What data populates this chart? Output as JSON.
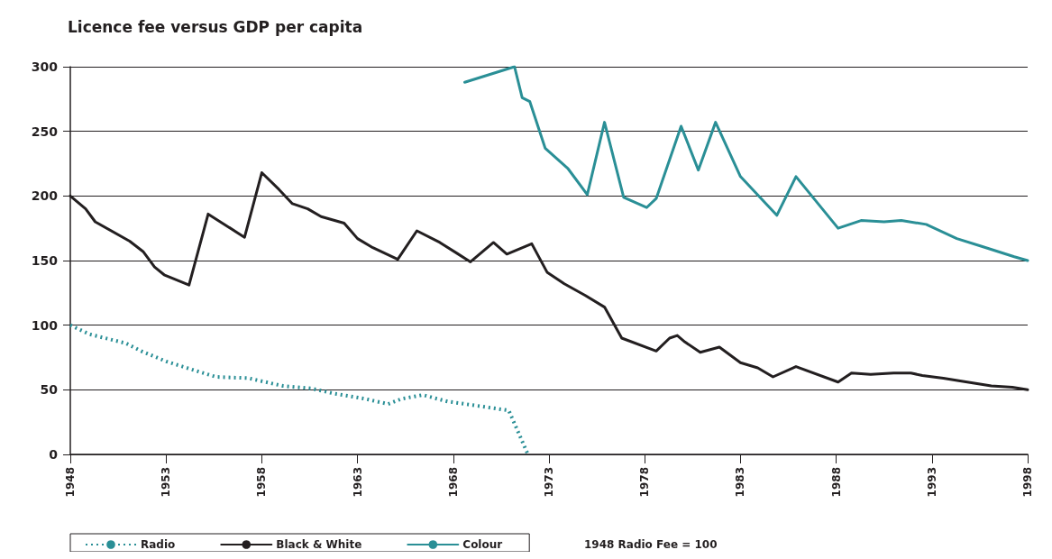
{
  "chart_data": {
    "type": "line",
    "title": "Licence fee versus GDP per capita",
    "annotations": [
      "1948 Radio Fee = 100"
    ],
    "xlim": [
      1948,
      1998
    ],
    "xticks": [
      1948,
      1953,
      1958,
      1963,
      1968,
      1973,
      1978,
      1983,
      1988,
      1993,
      1998
    ],
    "ylim": [
      0,
      300
    ],
    "yticks": [
      0,
      50,
      100,
      150,
      200,
      250,
      300
    ],
    "grid": "y",
    "legend": "bottom",
    "marker": "none",
    "series": [
      {
        "name": "Radio",
        "color": "#2a8f96",
        "line_style": "dotted",
        "x": [
          1948,
          1949,
          1950.9,
          1951.7,
          1953,
          1954.5,
          1955.6,
          1957.3,
          1959.1,
          1960.6,
          1961.8,
          1963.4,
          1964.6,
          1965.3,
          1966.4,
          1967.7,
          1969.1,
          1970.9,
          1971.9
        ],
        "values": [
          100,
          93,
          86,
          80,
          72,
          65,
          60,
          59,
          53,
          51,
          47,
          43,
          39,
          43,
          46,
          41,
          38,
          34,
          0
        ]
      },
      {
        "name": "Black & White",
        "color": "#231f20",
        "line_style": "solid",
        "x": [
          1948,
          1948.8,
          1949.3,
          1951.1,
          1951.8,
          1952.4,
          1952.9,
          1954.2,
          1955.2,
          1957.1,
          1958,
          1958.9,
          1959.6,
          1960.4,
          1961.1,
          1962.3,
          1963,
          1963.8,
          1965.1,
          1966.1,
          1967.3,
          1968.9,
          1970.1,
          1970.8,
          1972.1,
          1972.9,
          1973.8,
          1974.9,
          1975.9,
          1976.8,
          1978.6,
          1979.3,
          1979.7,
          1980.1,
          1980.9,
          1981.9,
          1983,
          1983.9,
          1984.7,
          1985.9,
          1988.1,
          1988.8,
          1989.8,
          1991,
          1991.9,
          1992.5,
          1993.6,
          1994.4,
          1996.1,
          1997.2,
          1998
        ],
        "values": [
          200,
          190,
          180,
          165,
          157,
          145,
          139,
          131,
          186,
          168,
          218,
          205,
          194,
          190,
          184,
          179,
          167,
          160,
          151,
          173,
          164,
          149,
          164,
          155,
          163,
          141,
          132,
          123,
          114,
          90,
          80,
          90,
          92,
          87,
          79,
          83,
          71,
          67,
          60,
          68,
          56,
          63,
          62,
          63,
          63,
          61,
          59,
          57,
          53,
          52,
          50
        ]
      },
      {
        "name": "Colour",
        "color": "#2a8f96",
        "line_style": "solid",
        "x": [
          1968.6,
          1971.2,
          1971.6,
          1972,
          1972.8,
          1974,
          1975,
          1975.9,
          1976.9,
          1978.1,
          1978.6,
          1979.9,
          1980.8,
          1981.7,
          1983,
          1984.9,
          1985.9,
          1988.1,
          1989.3,
          1990.5,
          1991.4,
          1992.7,
          1994.3,
          1995.6,
          1997.3,
          1998
        ],
        "values": [
          288,
          300,
          276,
          273,
          237,
          221,
          201,
          257,
          199,
          191,
          198,
          254,
          220,
          257,
          215,
          185,
          215,
          175,
          181,
          180,
          181,
          178,
          167,
          161,
          153,
          150
        ]
      }
    ]
  }
}
